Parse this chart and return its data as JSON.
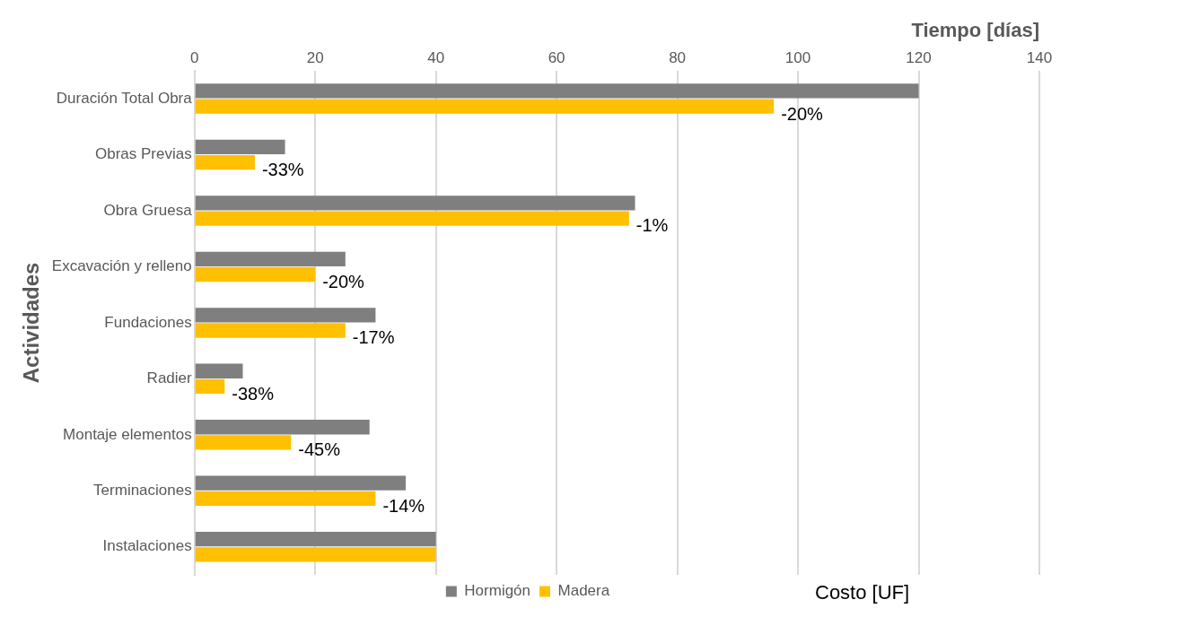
{
  "chart_data": {
    "type": "bar",
    "orientation": "horizontal",
    "xlabel": "Tiempo [días]",
    "ylabel": "Actividades",
    "categories": [
      "Duración Total Obra",
      "Obras Previas",
      "Obra Gruesa",
      "Excavación y relleno",
      "Fundaciones",
      "Radier",
      "Montaje elementos",
      "Terminaciones",
      "Instalaciones"
    ],
    "series": [
      {
        "name": "Hormigón",
        "color": "#7f7f7f",
        "values": [
          120,
          15,
          73,
          25,
          30,
          8,
          29,
          35,
          40
        ]
      },
      {
        "name": "Madera",
        "color": "#ffc000",
        "values": [
          96,
          10,
          72,
          20,
          25,
          5,
          16,
          30,
          40
        ]
      }
    ],
    "xlim": [
      0,
      140
    ],
    "xticks": [
      0,
      20,
      40,
      60,
      80,
      100,
      120,
      140
    ],
    "grid": "x",
    "legend": "bottom",
    "annotations": [
      {
        "text": "-20%",
        "x": 96,
        "y": "Duración Total Obra"
      },
      {
        "text": "-33%",
        "x": 10,
        "y": "Obras Previas"
      },
      {
        "text": "-1%",
        "x": 72,
        "y": "Obra Gruesa"
      },
      {
        "text": "-20%",
        "x": 20,
        "y": "Excavación y relleno"
      },
      {
        "text": "-17%",
        "x": 25,
        "y": "Fundaciones"
      },
      {
        "text": "-38%",
        "x": 5,
        "y": "Radier"
      },
      {
        "text": "-45%",
        "x": 16,
        "y": "Montaje elementos"
      },
      {
        "text": "-14%",
        "x": 30,
        "y": "Terminaciones"
      },
      "Costo [UF]"
    ]
  }
}
